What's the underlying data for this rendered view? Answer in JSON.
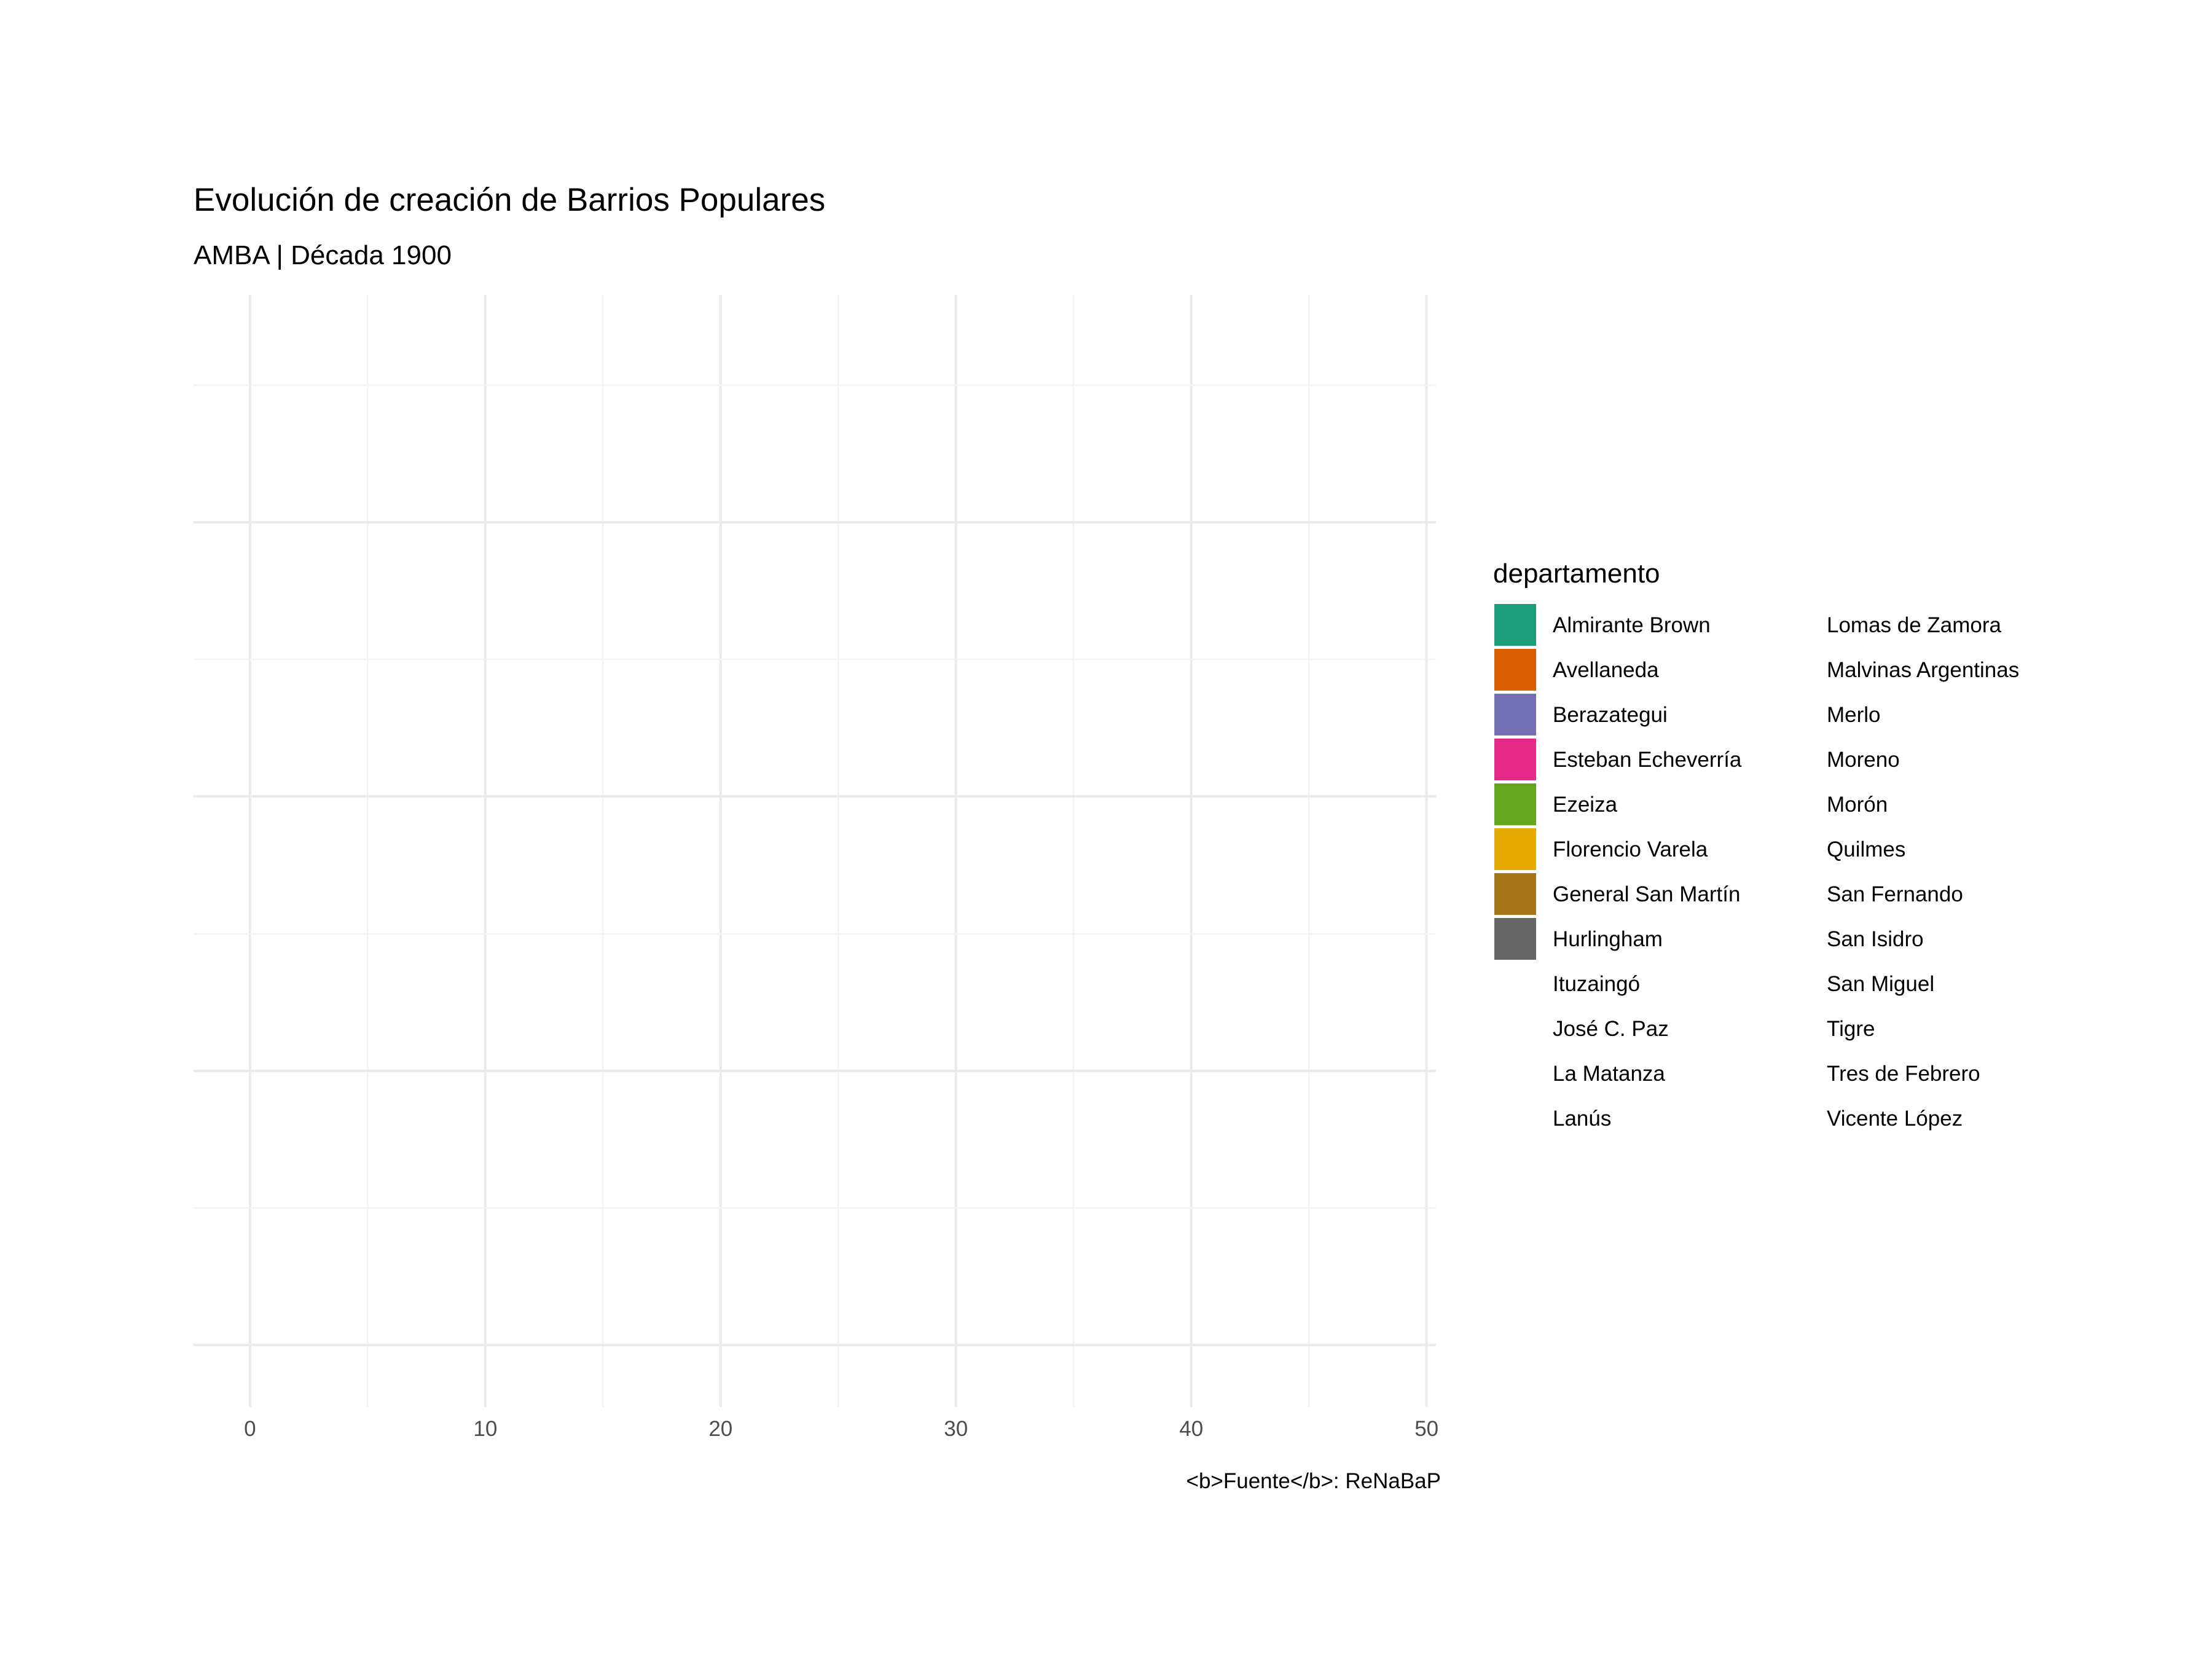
{
  "chart_data": {
    "type": "bar",
    "title": "Evolución de creación de Barrios Populares",
    "subtitle": "AMBA | Década 1900",
    "caption": "<b>Fuente</b>: ReNaBaP",
    "xlim": [
      -2.4,
      50.4
    ],
    "x_ticks": [
      "0",
      "10",
      "20",
      "30",
      "40",
      "50"
    ],
    "x_tick_values": [
      0,
      10,
      20,
      30,
      40,
      50
    ],
    "grid": true,
    "legend": {
      "title": "departamento",
      "placement": "right",
      "columns": 2,
      "entries": [
        {
          "name": "Almirante Brown",
          "color": "#1b9e77"
        },
        {
          "name": "Avellaneda",
          "color": "#d95f02"
        },
        {
          "name": "Berazategui",
          "color": "#7570b3"
        },
        {
          "name": "Esteban Echeverría",
          "color": "#e7298a"
        },
        {
          "name": "Ezeiza",
          "color": "#66a61e"
        },
        {
          "name": "Florencio Varela",
          "color": "#e6ab02"
        },
        {
          "name": "General San Martín",
          "color": "#a6761d"
        },
        {
          "name": "Hurlingham",
          "color": "#666666"
        },
        {
          "name": "Ituzaingó",
          "color": ""
        },
        {
          "name": "José C. Paz",
          "color": ""
        },
        {
          "name": "La Matanza",
          "color": ""
        },
        {
          "name": "Lanús",
          "color": ""
        },
        {
          "name": "Lomas de Zamora",
          "color": ""
        },
        {
          "name": "Malvinas Argentinas",
          "color": ""
        },
        {
          "name": "Merlo",
          "color": ""
        },
        {
          "name": "Moreno",
          "color": ""
        },
        {
          "name": "Morón",
          "color": ""
        },
        {
          "name": "Quilmes",
          "color": ""
        },
        {
          "name": "San Fernando",
          "color": ""
        },
        {
          "name": "San Isidro",
          "color": ""
        },
        {
          "name": "San Miguel",
          "color": ""
        },
        {
          "name": "Tigre",
          "color": ""
        },
        {
          "name": "Tres de Febrero",
          "color": ""
        },
        {
          "name": "Vicente López",
          "color": ""
        }
      ]
    },
    "categories": [],
    "series": []
  }
}
